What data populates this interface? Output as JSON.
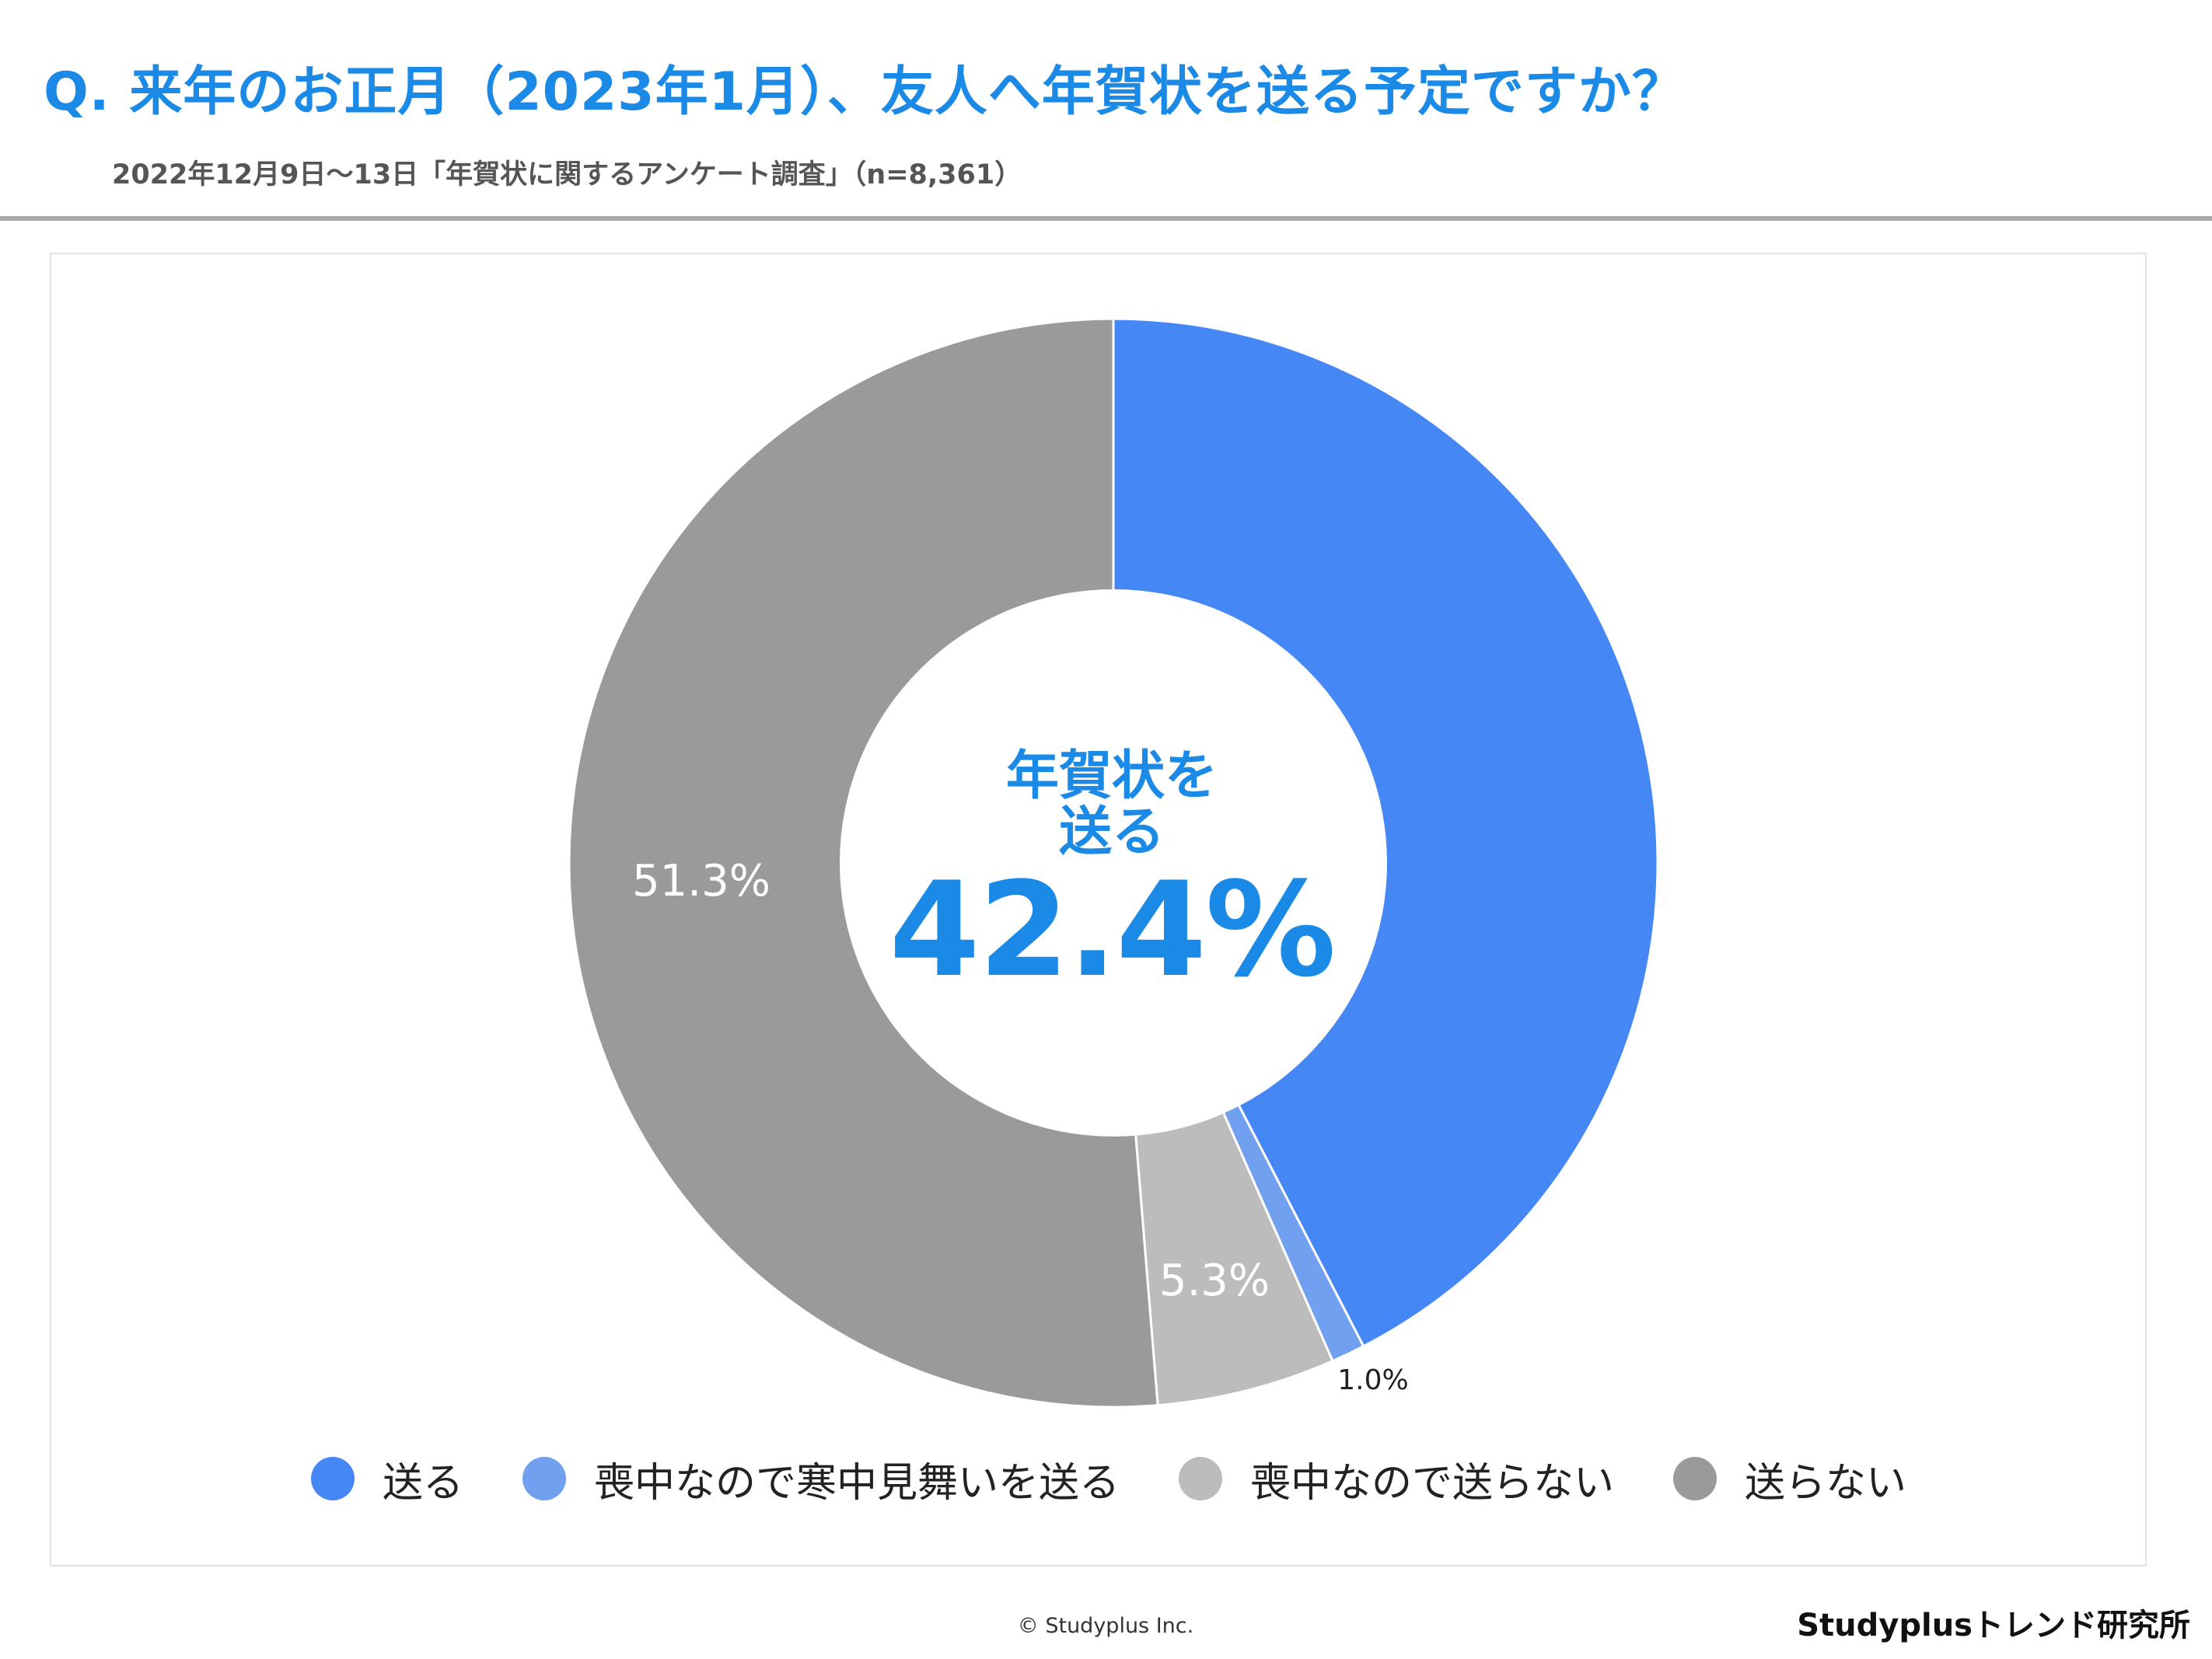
{
  "header": {
    "title": "Q. 来年のお正月（2023年1月）、友人へ年賀状を送る予定ですか？",
    "subtitle": "2022年12月9日〜13日「年賀状に関するアンケート調査」（n=8,361）"
  },
  "chart_data": {
    "type": "pie",
    "donut": true,
    "categories": [
      "送る",
      "喪中なので寒中見舞いを送る",
      "喪中なので送らない",
      "送らない"
    ],
    "values": [
      42.4,
      1.0,
      5.3,
      51.3
    ],
    "value_labels": [
      "",
      "1.0%",
      "5.3%",
      "51.3%"
    ],
    "colors": [
      "#4587f4",
      "#72a0f0",
      "#bcbcbc",
      "#9a9a9a"
    ],
    "center_label": {
      "line1": "年賀状を",
      "line2": "送る",
      "value": "42.4%"
    },
    "legend_position": "bottom"
  },
  "footer": {
    "copyright": "© Studyplus Inc.",
    "brand": "Studyplusトレンド研究所"
  }
}
